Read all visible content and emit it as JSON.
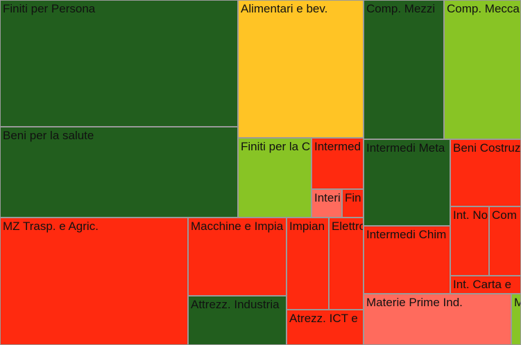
{
  "chart_data": {
    "type": "treemap",
    "colors": {
      "dark-green": "#225e1e",
      "light-green": "#88c425",
      "yellow": "#ffc425",
      "red": "#ff2a0f",
      "salmon": "#ff6b5d"
    },
    "items": [
      {
        "label": "Finiti per Persona",
        "color": "dark-green"
      },
      {
        "label": "Beni per la salute",
        "color": "dark-green"
      },
      {
        "label": "Alimentari e bev.",
        "color": "yellow"
      },
      {
        "label": "Finiti per la C",
        "color": "light-green"
      },
      {
        "label": "Intermed",
        "color": "red"
      },
      {
        "label": "Interi",
        "color": "salmon"
      },
      {
        "label": "Fin",
        "color": "red"
      },
      {
        "label": "Comp. Mezzi",
        "color": "dark-green"
      },
      {
        "label": "Comp. Mecca",
        "color": "light-green"
      },
      {
        "label": "Intermedi Meta",
        "color": "dark-green"
      },
      {
        "label": "Beni Costruz",
        "color": "red"
      },
      {
        "label": "Intermedi Chim",
        "color": "red"
      },
      {
        "label": "Int. No",
        "color": "red"
      },
      {
        "label": "Com",
        "color": "red"
      },
      {
        "label": "Int. Carta e",
        "color": "red"
      },
      {
        "label": "Materie Prime Ind.",
        "color": "salmon"
      },
      {
        "label": "M",
        "color": "light-green"
      },
      {
        "label": "MZ Trasp. e Agric.",
        "color": "red"
      },
      {
        "label": "Macchine e Impia",
        "color": "red"
      },
      {
        "label": "Attrezz. Industria",
        "color": "dark-green"
      },
      {
        "label": "Impian",
        "color": "red"
      },
      {
        "label": "Elettro",
        "color": "red"
      },
      {
        "label": "Atrezz. ICT e",
        "color": "red"
      }
    ]
  }
}
